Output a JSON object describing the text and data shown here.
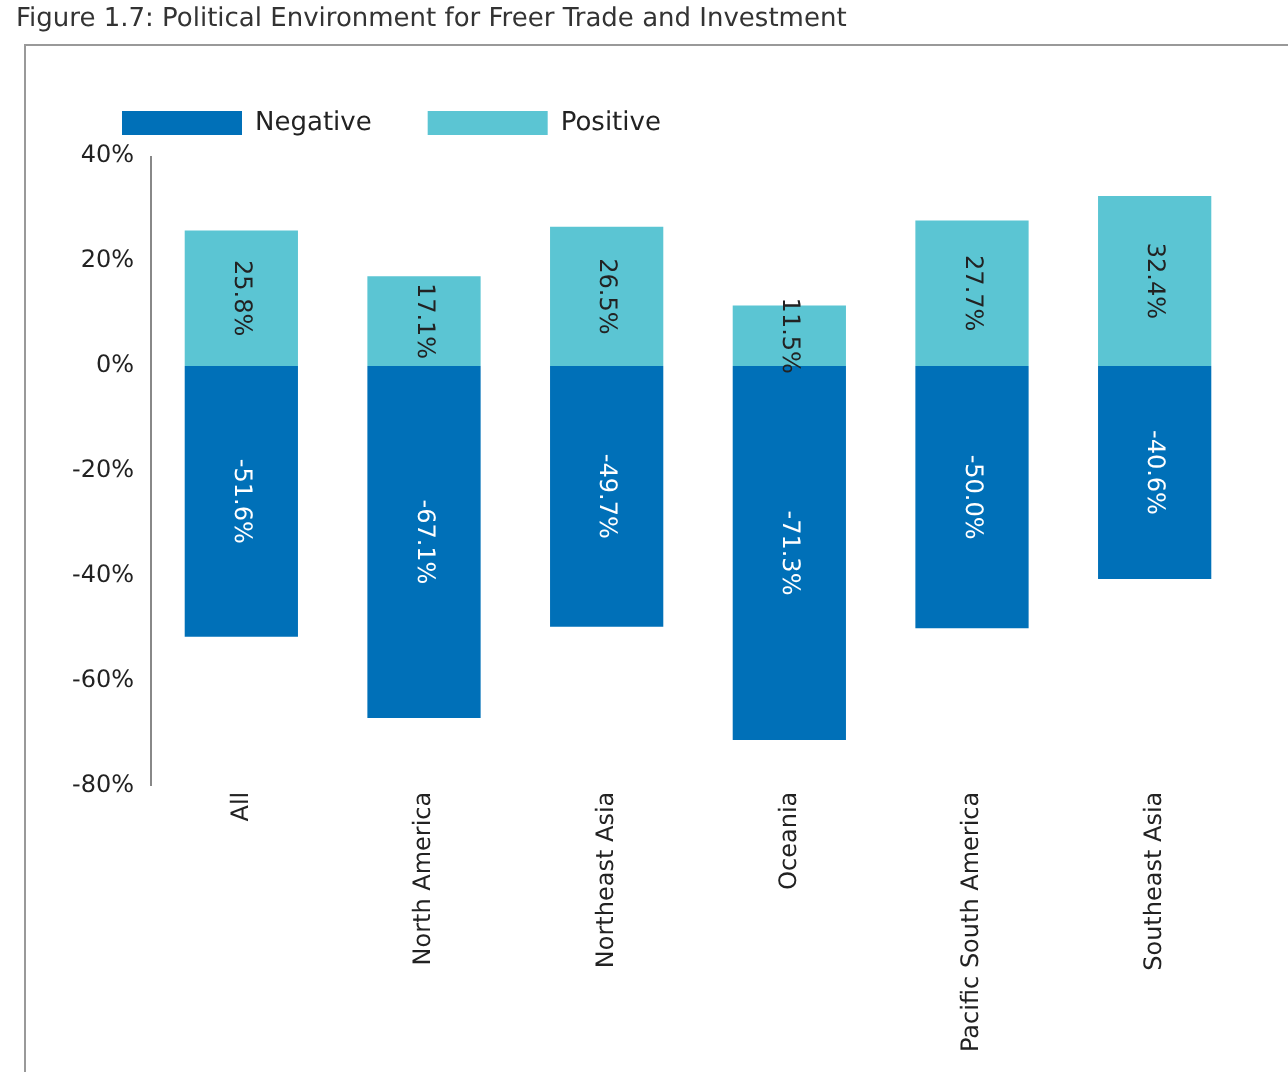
{
  "chart_data": {
    "type": "bar",
    "title": "Figure 1.7: Political Environment for Freer Trade and Investment",
    "stacked": true,
    "categories": [
      "All",
      "North America",
      "Northeast Asia",
      "Oceania",
      "Pacific South America",
      "Southeast Asia"
    ],
    "series": [
      {
        "name": "Negative",
        "color": "#0070b8",
        "values": [
          -51.6,
          -67.1,
          -49.7,
          -71.3,
          -50.0,
          -40.6
        ],
        "value_labels": [
          "-51.6%",
          "-67.1%",
          "-49.7%",
          "-71.3%",
          "-50.0%",
          "-40.6%"
        ]
      },
      {
        "name": "Positive",
        "color": "#5bc5d3",
        "values": [
          25.8,
          17.1,
          26.5,
          11.5,
          27.7,
          32.4
        ],
        "value_labels": [
          "25.8%",
          "17.1%",
          "26.5%",
          "11.5%",
          "27.7%",
          "32.4%"
        ]
      }
    ],
    "ylim": [
      -80,
      40
    ],
    "yticks": [
      {
        "value": -80,
        "label": "-80%"
      },
      {
        "value": -60,
        "label": "-60%"
      },
      {
        "value": -40,
        "label": "-40%"
      },
      {
        "value": -20,
        "label": "-20%"
      },
      {
        "value": 0,
        "label": "0%"
      },
      {
        "value": 20,
        "label": "20%"
      },
      {
        "value": 40,
        "label": "40%"
      }
    ],
    "grid": false,
    "legend": "top left"
  }
}
